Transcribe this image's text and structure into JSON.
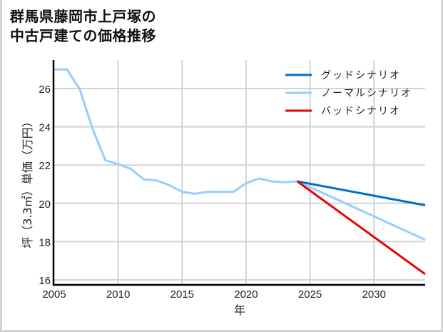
{
  "title_line1": "群馬県藤岡市上戸塚の",
  "title_line2": "中古戸建ての価格推移",
  "chart_data": {
    "type": "line",
    "title": "群馬県藤岡市上戸塚の中古戸建ての価格推移",
    "xlabel": "年",
    "ylabel": "坪（3.3㎡）単価（万円）",
    "xlim": [
      2005,
      2034
    ],
    "ylim": [
      15.8,
      27.3
    ],
    "xticks": [
      2005,
      2010,
      2015,
      2020,
      2025,
      2030
    ],
    "yticks": [
      16,
      18,
      20,
      22,
      24,
      26
    ],
    "grid": true,
    "legend_position": "upper right",
    "series": [
      {
        "name": "グッドシナリオ",
        "color": "#0070c8",
        "x": [
          2024,
          2034
        ],
        "values": [
          21.15,
          19.9
        ]
      },
      {
        "name": "ノーマルシナリオ",
        "color": "#99ccff",
        "x": [
          2005,
          2006,
          2007,
          2008,
          2009,
          2010,
          2011,
          2012,
          2013,
          2014,
          2015,
          2016,
          2017,
          2018,
          2019,
          2020,
          2021,
          2022,
          2023,
          2024,
          2034
        ],
        "values": [
          27.0,
          27.0,
          25.95,
          23.9,
          22.25,
          22.05,
          21.8,
          21.25,
          21.2,
          20.95,
          20.6,
          20.5,
          20.6,
          20.6,
          20.6,
          21.05,
          21.3,
          21.15,
          21.1,
          21.15,
          18.1
        ]
      },
      {
        "name": "バッドシナリオ",
        "color": "#ee0000",
        "x": [
          2024,
          2034
        ],
        "values": [
          21.15,
          16.3
        ]
      }
    ]
  }
}
